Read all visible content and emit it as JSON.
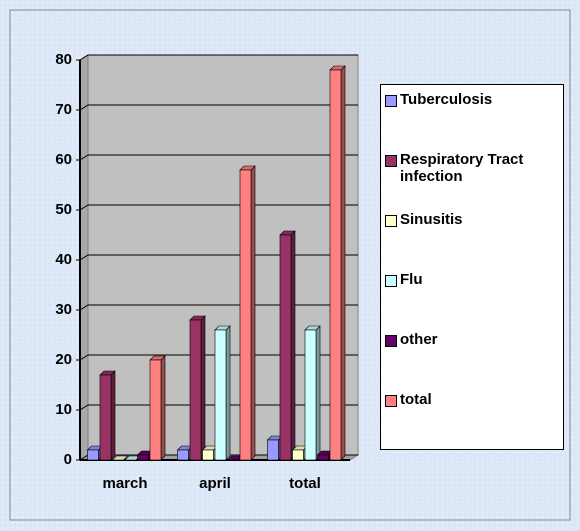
{
  "chart_data": {
    "type": "bar3d",
    "categories": [
      "march",
      "april",
      "total"
    ],
    "series": [
      {
        "name": "Tuberculosis",
        "color": "#9999ff",
        "values": [
          2,
          2,
          4
        ]
      },
      {
        "name": "Respiratory Tract infection",
        "color": "#993366",
        "values": [
          17,
          28,
          45
        ]
      },
      {
        "name": "Sinusitis",
        "color": "#ffffcc",
        "values": [
          0,
          2,
          2
        ]
      },
      {
        "name": "Flu",
        "color": "#ccffff",
        "values": [
          0,
          26,
          26
        ]
      },
      {
        "name": "other",
        "color": "#660066",
        "values": [
          1,
          0,
          1
        ]
      },
      {
        "name": "total",
        "color": "#ff8080",
        "values": [
          20,
          58,
          78
        ]
      }
    ],
    "ylim": [
      0,
      80
    ],
    "yticks": [
      0,
      10,
      20,
      30,
      40,
      50,
      60,
      70,
      80
    ],
    "grid": true,
    "legend": "right"
  }
}
